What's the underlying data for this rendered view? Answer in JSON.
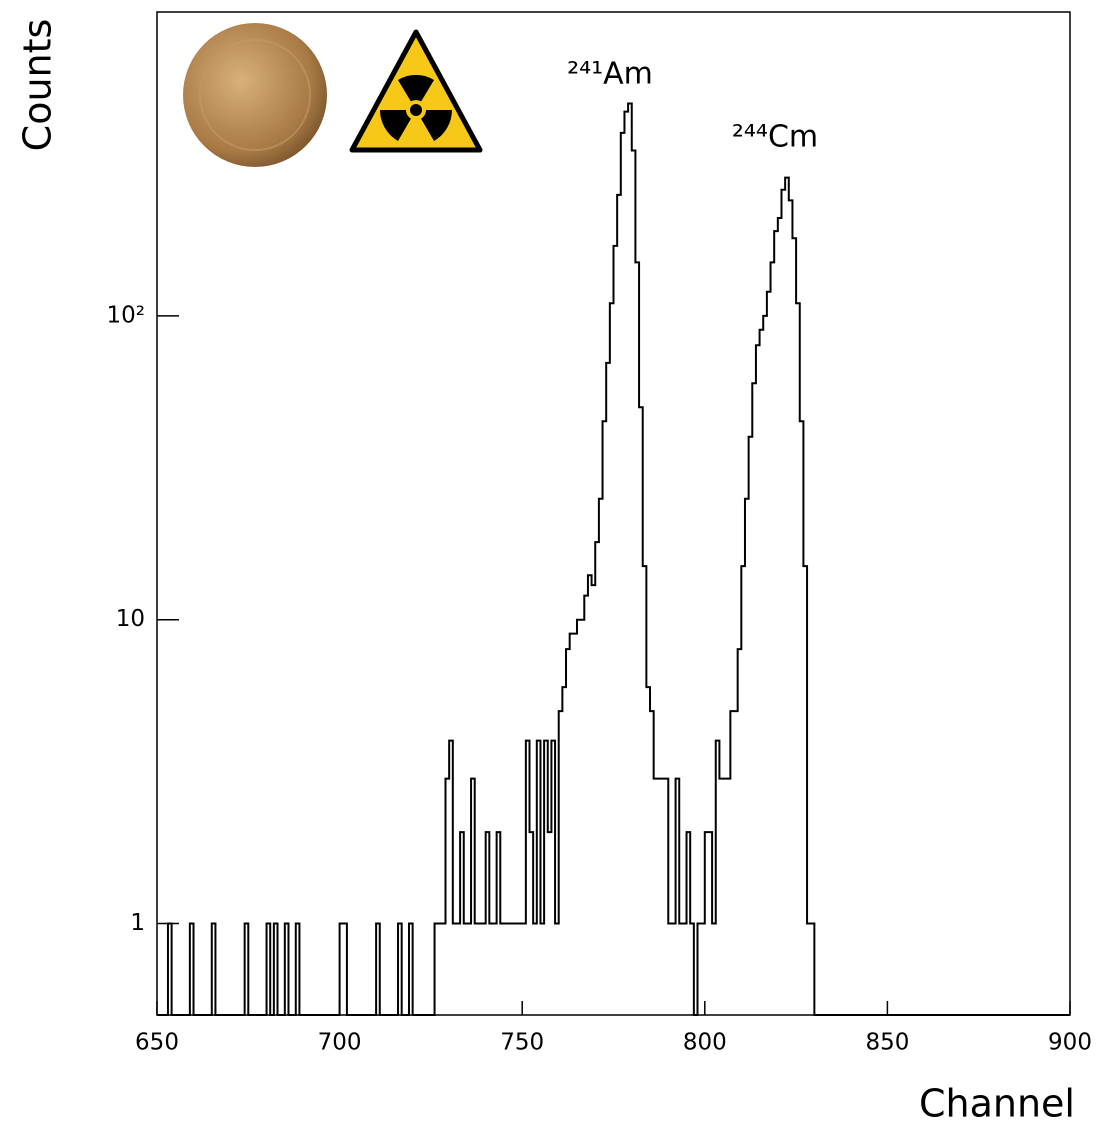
{
  "chart_data": {
    "type": "histogram",
    "y_label": "Counts",
    "x_label": "Channel",
    "log_y": true,
    "color": "#000000",
    "annotations": [
      "²⁴¹Am",
      "²⁴⁴Cm"
    ],
    "bins": [
      650,
      651,
      652,
      653,
      654,
      655,
      656,
      657,
      658,
      659,
      660,
      661,
      662,
      663,
      664,
      665,
      666,
      667,
      668,
      669,
      670,
      671,
      672,
      673,
      674,
      675,
      676,
      677,
      678,
      679,
      680,
      681,
      682,
      683,
      684,
      685,
      686,
      687,
      688,
      689,
      690,
      691,
      692,
      693,
      694,
      695,
      696,
      697,
      698,
      699,
      700,
      701,
      702,
      703,
      704,
      705,
      706,
      707,
      708,
      709,
      710,
      711,
      712,
      713,
      714,
      715,
      716,
      717,
      718,
      719,
      720,
      721,
      722,
      723,
      724,
      725,
      726,
      727,
      728,
      729,
      730,
      731,
      732,
      733,
      734,
      735,
      736,
      737,
      738,
      739,
      740,
      741,
      742,
      743,
      744,
      745,
      746,
      747,
      748,
      749,
      750,
      751,
      752,
      753,
      754,
      755,
      756,
      757,
      758,
      759,
      760,
      761,
      762,
      763,
      764,
      765,
      766,
      767,
      768,
      769,
      770,
      771,
      772,
      773,
      774,
      775,
      776,
      777,
      778,
      779,
      780,
      781,
      782,
      783,
      784,
      785,
      786,
      787,
      788,
      789,
      790,
      791,
      792,
      793,
      794,
      795,
      796,
      797,
      798,
      799,
      800,
      801,
      802,
      803,
      804,
      805,
      806,
      807,
      808,
      809,
      810,
      811,
      812,
      813,
      814,
      815,
      816,
      817,
      818,
      819,
      820,
      821,
      822,
      823,
      824,
      825,
      826,
      827,
      828,
      829,
      830,
      831,
      832,
      833,
      834,
      835,
      836,
      837,
      838,
      839,
      840,
      841,
      842,
      843,
      844,
      845,
      846,
      847,
      848,
      849,
      850,
      851,
      852,
      853,
      854,
      855,
      856,
      857,
      858,
      859,
      860,
      861,
      862,
      863,
      864,
      865,
      866,
      867,
      868,
      869,
      870,
      871,
      872,
      873,
      874,
      875,
      876,
      877,
      878,
      879,
      880,
      881,
      882,
      883,
      884,
      885,
      886,
      887,
      888,
      889,
      890,
      891,
      892,
      893,
      894,
      895,
      896,
      897,
      898,
      899,
      900
    ],
    "values": [
      0,
      0,
      0,
      1,
      0,
      0,
      0,
      0,
      0,
      1,
      0,
      0,
      0,
      0,
      0,
      1,
      0,
      0,
      0,
      0,
      0,
      0,
      0,
      0,
      1,
      0,
      0,
      0,
      0,
      0,
      1,
      0,
      1,
      0,
      0,
      1,
      0,
      0,
      1,
      0,
      0,
      0,
      0,
      0,
      0,
      0,
      0,
      0,
      0,
      0,
      1,
      1,
      0,
      0,
      0,
      0,
      0,
      0,
      0,
      0,
      1,
      0,
      0,
      0,
      0,
      0,
      1,
      0,
      0,
      1,
      0,
      0,
      0,
      0,
      0,
      0,
      1,
      1,
      1,
      3,
      4,
      1,
      1,
      2,
      1,
      1,
      3,
      1,
      1,
      1,
      2,
      1,
      1,
      2,
      1,
      1,
      1,
      1,
      1,
      1,
      1,
      4,
      2,
      1,
      4,
      1,
      4,
      2,
      4,
      1,
      5,
      6,
      8,
      9,
      9,
      10,
      10,
      12,
      14,
      13,
      18,
      25,
      45,
      70,
      110,
      170,
      250,
      400,
      470,
      500,
      350,
      150,
      50,
      15,
      6,
      5,
      3,
      3,
      3,
      3,
      1,
      1,
      3,
      1,
      1,
      2,
      1,
      0,
      1,
      1,
      2,
      2,
      1,
      4,
      3,
      3,
      3,
      5,
      5,
      8,
      15,
      25,
      40,
      60,
      80,
      90,
      100,
      120,
      150,
      190,
      210,
      260,
      285,
      240,
      180,
      110,
      45,
      15,
      1,
      1,
      0,
      0,
      0,
      0,
      0,
      0,
      0,
      0,
      0,
      0,
      0,
      0,
      0,
      0,
      0,
      0,
      0,
      0,
      0,
      0,
      0,
      0,
      0,
      0,
      0,
      0,
      0,
      0,
      0,
      0,
      0,
      0,
      0,
      0,
      0,
      0,
      0,
      0,
      0,
      0,
      0,
      0,
      0,
      0,
      0,
      0,
      0,
      0,
      0,
      0,
      0,
      0,
      0,
      0,
      0,
      0,
      0,
      0,
      0,
      0,
      0,
      0,
      0,
      0,
      0,
      0,
      0,
      0,
      0,
      0
    ],
    "xlim": [
      650,
      900
    ],
    "xticks": [
      650,
      700,
      750,
      800,
      850,
      900
    ],
    "ylim": [
      0.5,
      1000
    ],
    "yticks": [
      1,
      10,
      {
        "value": 100,
        "label": "10²"
      }
    ]
  }
}
